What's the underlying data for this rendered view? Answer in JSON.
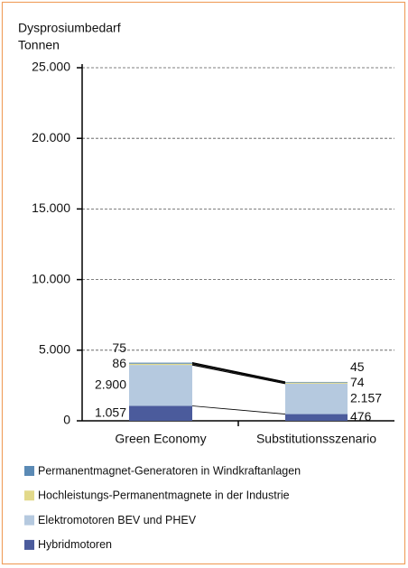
{
  "chart_data": {
    "type": "bar",
    "stacked": true,
    "ylabel": [
      "Dysprosiumbedarf",
      "Tonnen"
    ],
    "categories": [
      "Green Economy",
      "Substitutionsszenario"
    ],
    "series": [
      {
        "name": "Permanentmagnet-Generatoren in Windkraftanlagen",
        "color": "#5b8ab5",
        "values": [
          75,
          45
        ]
      },
      {
        "name": "Hochleistungs-Permanentmagnete in der Industrie",
        "color": "#e2d98a",
        "values": [
          86,
          74
        ]
      },
      {
        "name": "Elektromotoren BEV und PHEV",
        "color": "#b5c9df",
        "values": [
          2900,
          2157
        ],
        "value_labels": [
          "2.900",
          "2.157"
        ]
      },
      {
        "name": "Hybridmotoren",
        "color": "#4b5b9c",
        "values": [
          1057,
          476
        ],
        "value_labels": [
          "1.057",
          "476"
        ]
      }
    ],
    "ylim": [
      0,
      25000
    ],
    "yticks": [
      0,
      {
        "value": 5000,
        "label": "5.000"
      },
      {
        "value": 10000,
        "label": "10.000"
      },
      {
        "value": 15000,
        "label": "15.000"
      },
      {
        "value": 20000,
        "label": "20.000"
      },
      {
        "value": 25000,
        "label": "25.000"
      }
    ],
    "grid": true
  }
}
